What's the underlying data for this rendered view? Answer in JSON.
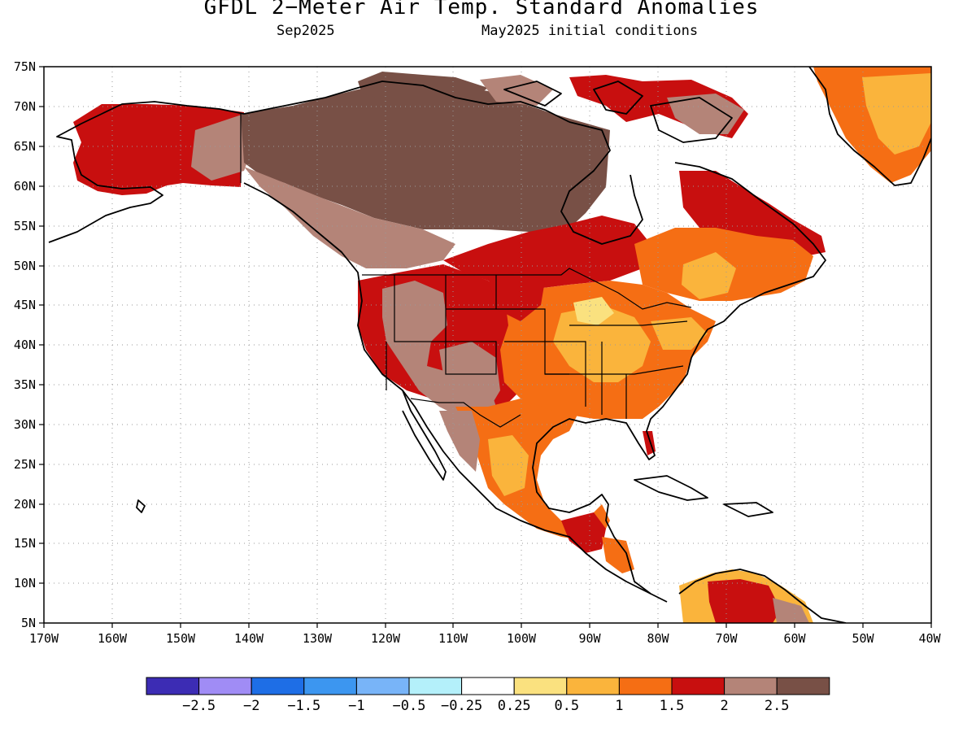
{
  "header": {
    "title": "GFDL 2−Meter Air Temp. Standard Anomalies",
    "valid_month": "Sep2025",
    "init_label": "May2025 initial conditions"
  },
  "map": {
    "lon_range": [
      -170,
      -40
    ],
    "lat_range": [
      5,
      75
    ],
    "grid": true,
    "lat_ticks": [
      "75N",
      "70N",
      "65N",
      "60N",
      "55N",
      "50N",
      "45N",
      "40N",
      "35N",
      "30N",
      "25N",
      "20N",
      "15N",
      "10N",
      "5N"
    ],
    "lon_ticks": [
      "170W",
      "160W",
      "150W",
      "140W",
      "130W",
      "120W",
      "110W",
      "100W",
      "90W",
      "80W",
      "70W",
      "60W",
      "50W",
      "40W"
    ]
  },
  "colorbar": {
    "colors": [
      "#3c2cb4",
      "#a08cf5",
      "#1e6ee6",
      "#3c96f0",
      "#78b4f8",
      "#b4f0fa",
      "#ffffff",
      "#fae17f",
      "#fab43c",
      "#f56e14",
      "#c80f0f",
      "#b48478",
      "#785046"
    ],
    "labels": [
      "−2.5",
      "−2",
      "−1.5",
      "−1",
      "−0.5",
      "−0.25",
      "0.25",
      "0.5",
      "1",
      "1.5",
      "2",
      "2.5"
    ]
  },
  "anomaly_regions": [
    {
      "area": "Alaska",
      "category": 10
    },
    {
      "area": "Northwest Canada",
      "category": 12
    },
    {
      "area": "Canadian Prairies",
      "category": 11
    },
    {
      "area": "Western US",
      "category": 11
    },
    {
      "area": "US Southwest",
      "category": 11
    },
    {
      "area": "Northern Plains",
      "category": 10
    },
    {
      "area": "Eastern US",
      "category": 9
    },
    {
      "area": "Great Lakes / Northeast",
      "category": 8
    },
    {
      "area": "Ontario / Quebec",
      "category": 10
    },
    {
      "area": "Labrador",
      "category": 9
    },
    {
      "area": "Greenland",
      "category": 8
    },
    {
      "area": "Mexico",
      "category": 9
    },
    {
      "area": "Central America",
      "category": 10
    },
    {
      "area": "Northern South America",
      "category": 10
    }
  ]
}
